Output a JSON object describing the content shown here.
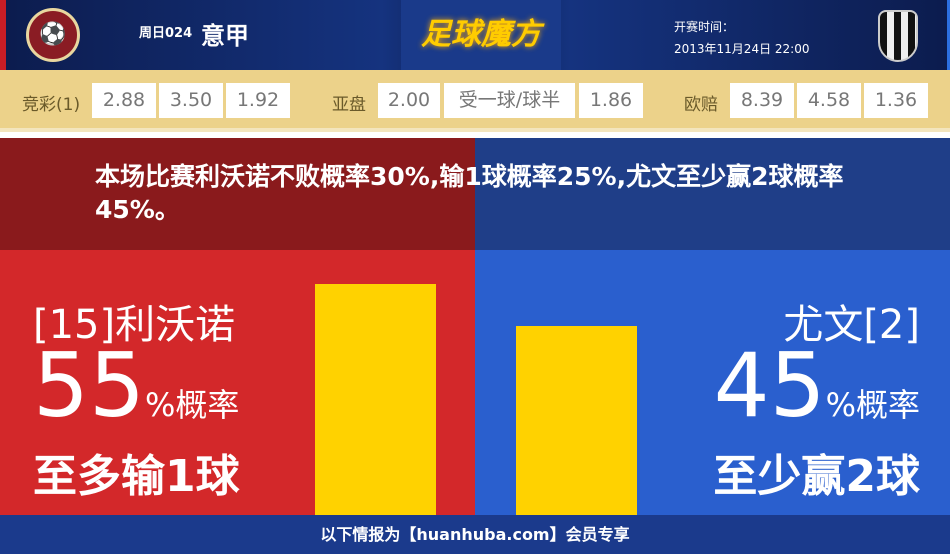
{
  "header": {
    "home_logo": "LIVORNO CALCIO 1915",
    "round": "周日024",
    "league": "意甲",
    "brand": "足球魔方",
    "time_label": "开赛时间：",
    "time_value": "2013年11月24日 22:00",
    "away_logo": "JUVENTUS"
  },
  "odds": {
    "jingcai_label": "竞彩(1)",
    "jingcai": [
      "2.88",
      "3.50",
      "1.92"
    ],
    "yapan_label": "亚盘",
    "yapan": [
      "2.00",
      "受一球/球半",
      "1.86"
    ],
    "oupei_label": "欧赔",
    "oupei": [
      "8.39",
      "4.58",
      "1.36"
    ]
  },
  "message": "本场比赛利沃诺不败概率30%,输1球概率25%,尤文至少赢2球概率45%。",
  "home": {
    "team": "[15]利沃诺",
    "percent": "55",
    "suffix": "%概率",
    "result": "至多输1球",
    "probability": 55
  },
  "away": {
    "team": "尤文[2]",
    "percent": "45",
    "suffix": "%概率",
    "result": "至少赢2球",
    "probability": 45
  },
  "colors": {
    "home": "#d3282a",
    "away": "#2a5fce",
    "bar": "#ffd200"
  },
  "footer": "以下情报为【huanhuba.com】会员专享"
}
